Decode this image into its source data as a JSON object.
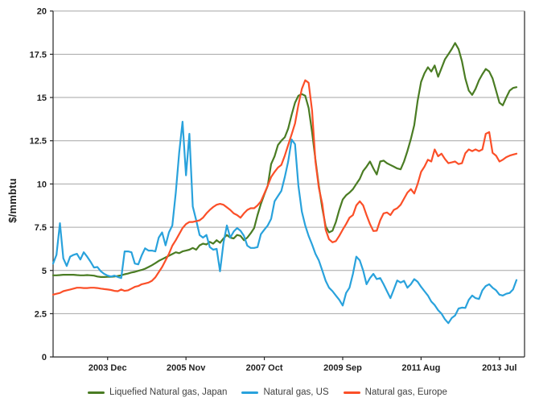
{
  "chart": {
    "background": "#ffffff",
    "gridline_color": "#a6a6a6",
    "axis_color": "#262626",
    "tick_label_color": "#1f1f1f",
    "legend_text_color": "#404040"
  },
  "chart_data": {
    "type": "line",
    "title": "",
    "xlabel": "",
    "ylabel": "$/mmbtu",
    "ylim": [
      0,
      20
    ],
    "y_ticks": [
      0,
      2.5,
      5,
      7.5,
      10,
      12.5,
      15,
      17.5,
      20
    ],
    "grid": "horizontal",
    "legend_position": "bottom-center",
    "x_unit": "month",
    "x_start_label": "2002 Aug",
    "n_points": 137,
    "x_ticks": [
      {
        "index": 16,
        "label": "2003 Dec"
      },
      {
        "index": 39,
        "label": "2005 Nov"
      },
      {
        "index": 62,
        "label": "2007 Oct"
      },
      {
        "index": 85,
        "label": "2009 Sep"
      },
      {
        "index": 108,
        "label": "2011 Aug"
      },
      {
        "index": 131,
        "label": "2013 Jul"
      }
    ],
    "series": [
      {
        "name": "Liquefied Natural gas, Japan",
        "color": "#4a7c23",
        "values": [
          4.72,
          4.72,
          4.73,
          4.75,
          4.75,
          4.75,
          4.75,
          4.73,
          4.72,
          4.72,
          4.73,
          4.72,
          4.7,
          4.65,
          4.62,
          4.62,
          4.63,
          4.63,
          4.65,
          4.68,
          4.72,
          4.78,
          4.82,
          4.88,
          4.92,
          4.98,
          5.03,
          5.1,
          5.2,
          5.3,
          5.42,
          5.55,
          5.65,
          5.75,
          5.85,
          5.95,
          6.05,
          6.0,
          6.1,
          6.15,
          6.2,
          6.3,
          6.2,
          6.45,
          6.55,
          6.5,
          6.65,
          6.55,
          6.75,
          6.6,
          6.85,
          7.05,
          6.9,
          6.85,
          7.05,
          7.0,
          6.75,
          6.9,
          7.15,
          7.45,
          8.2,
          8.85,
          9.4,
          9.9,
          11.15,
          11.6,
          12.25,
          12.5,
          12.7,
          13.2,
          14.0,
          14.7,
          15.1,
          15.2,
          15.1,
          14.4,
          13.0,
          11.4,
          9.9,
          8.6,
          7.55,
          7.2,
          7.3,
          7.8,
          8.5,
          9.1,
          9.35,
          9.5,
          9.7,
          10.0,
          10.3,
          10.75,
          11.0,
          11.3,
          10.9,
          10.55,
          11.3,
          11.35,
          11.2,
          11.1,
          11.0,
          10.9,
          10.85,
          11.3,
          11.9,
          12.6,
          13.4,
          14.8,
          15.9,
          16.4,
          16.75,
          16.5,
          16.85,
          16.2,
          16.7,
          17.2,
          17.5,
          17.8,
          18.15,
          17.8,
          17.1,
          16.1,
          15.4,
          15.15,
          15.5,
          16.0,
          16.35,
          16.65,
          16.5,
          16.1,
          15.4,
          14.7,
          14.55,
          15.0,
          15.4,
          15.55,
          15.6
        ]
      },
      {
        "name": "Natural gas, US",
        "color": "#29a2dc",
        "values": [
          5.4,
          5.9,
          7.73,
          5.7,
          5.26,
          5.8,
          5.9,
          5.96,
          5.63,
          6.05,
          5.8,
          5.5,
          5.17,
          5.2,
          4.95,
          4.8,
          4.7,
          4.65,
          4.7,
          4.62,
          4.56,
          6.1,
          6.1,
          6.05,
          5.4,
          5.35,
          5.87,
          6.28,
          6.15,
          6.15,
          6.1,
          6.9,
          7.2,
          6.45,
          7.2,
          7.6,
          9.5,
          11.8,
          13.6,
          10.5,
          12.9,
          8.7,
          7.9,
          7.05,
          6.9,
          7.05,
          6.35,
          6.2,
          6.25,
          4.95,
          6.6,
          7.6,
          6.9,
          7.25,
          7.45,
          7.3,
          7.0,
          6.43,
          6.3,
          6.3,
          6.35,
          7.1,
          7.36,
          7.6,
          7.98,
          9.0,
          9.3,
          9.6,
          10.4,
          11.3,
          12.57,
          12.3,
          9.9,
          8.4,
          7.6,
          7.0,
          6.5,
          5.96,
          5.58,
          5.0,
          4.4,
          4.0,
          3.8,
          3.55,
          3.3,
          2.97,
          3.7,
          4.0,
          4.8,
          5.8,
          5.58,
          5.0,
          4.2,
          4.56,
          4.8,
          4.5,
          4.56,
          4.2,
          3.8,
          3.4,
          3.9,
          4.42,
          4.3,
          4.4,
          4.0,
          4.2,
          4.5,
          4.35,
          4.05,
          3.8,
          3.55,
          3.2,
          3.0,
          2.7,
          2.5,
          2.18,
          1.95,
          2.25,
          2.4,
          2.8,
          2.85,
          2.83,
          3.3,
          3.55,
          3.4,
          3.35,
          3.85,
          4.1,
          4.2,
          4.0,
          3.85,
          3.6,
          3.55,
          3.65,
          3.7,
          3.9,
          4.45
        ]
      },
      {
        "name": "Natural gas, Europe",
        "color": "#fb4f28",
        "values": [
          3.6,
          3.65,
          3.7,
          3.8,
          3.85,
          3.9,
          3.95,
          4.0,
          4.0,
          3.98,
          3.98,
          4.0,
          4.0,
          3.98,
          3.95,
          3.92,
          3.9,
          3.87,
          3.82,
          3.8,
          3.9,
          3.82,
          3.85,
          3.95,
          4.05,
          4.1,
          4.2,
          4.25,
          4.3,
          4.4,
          4.6,
          4.9,
          5.2,
          5.58,
          5.96,
          6.43,
          6.75,
          7.1,
          7.45,
          7.68,
          7.8,
          7.8,
          7.85,
          7.9,
          8.05,
          8.3,
          8.5,
          8.67,
          8.8,
          8.85,
          8.8,
          8.65,
          8.5,
          8.3,
          8.2,
          8.05,
          8.3,
          8.5,
          8.6,
          8.6,
          8.76,
          9.0,
          9.45,
          9.9,
          10.4,
          10.7,
          10.95,
          11.1,
          11.64,
          12.25,
          12.87,
          13.5,
          14.58,
          15.5,
          16.0,
          15.85,
          14.25,
          11.3,
          9.78,
          8.85,
          7.36,
          6.8,
          6.63,
          6.7,
          7.0,
          7.36,
          7.68,
          8.05,
          8.2,
          8.76,
          9.0,
          8.76,
          8.2,
          7.68,
          7.28,
          7.3,
          7.9,
          8.3,
          8.35,
          8.2,
          8.5,
          8.6,
          8.8,
          9.15,
          9.5,
          9.7,
          9.45,
          10.0,
          10.7,
          11.0,
          11.4,
          11.3,
          12.0,
          11.6,
          11.75,
          11.45,
          11.2,
          11.25,
          11.3,
          11.15,
          11.2,
          11.78,
          12.0,
          11.9,
          12.0,
          11.9,
          12.0,
          12.9,
          13.0,
          11.8,
          11.64,
          11.3,
          11.4,
          11.55,
          11.64,
          11.7,
          11.75
        ]
      }
    ]
  }
}
